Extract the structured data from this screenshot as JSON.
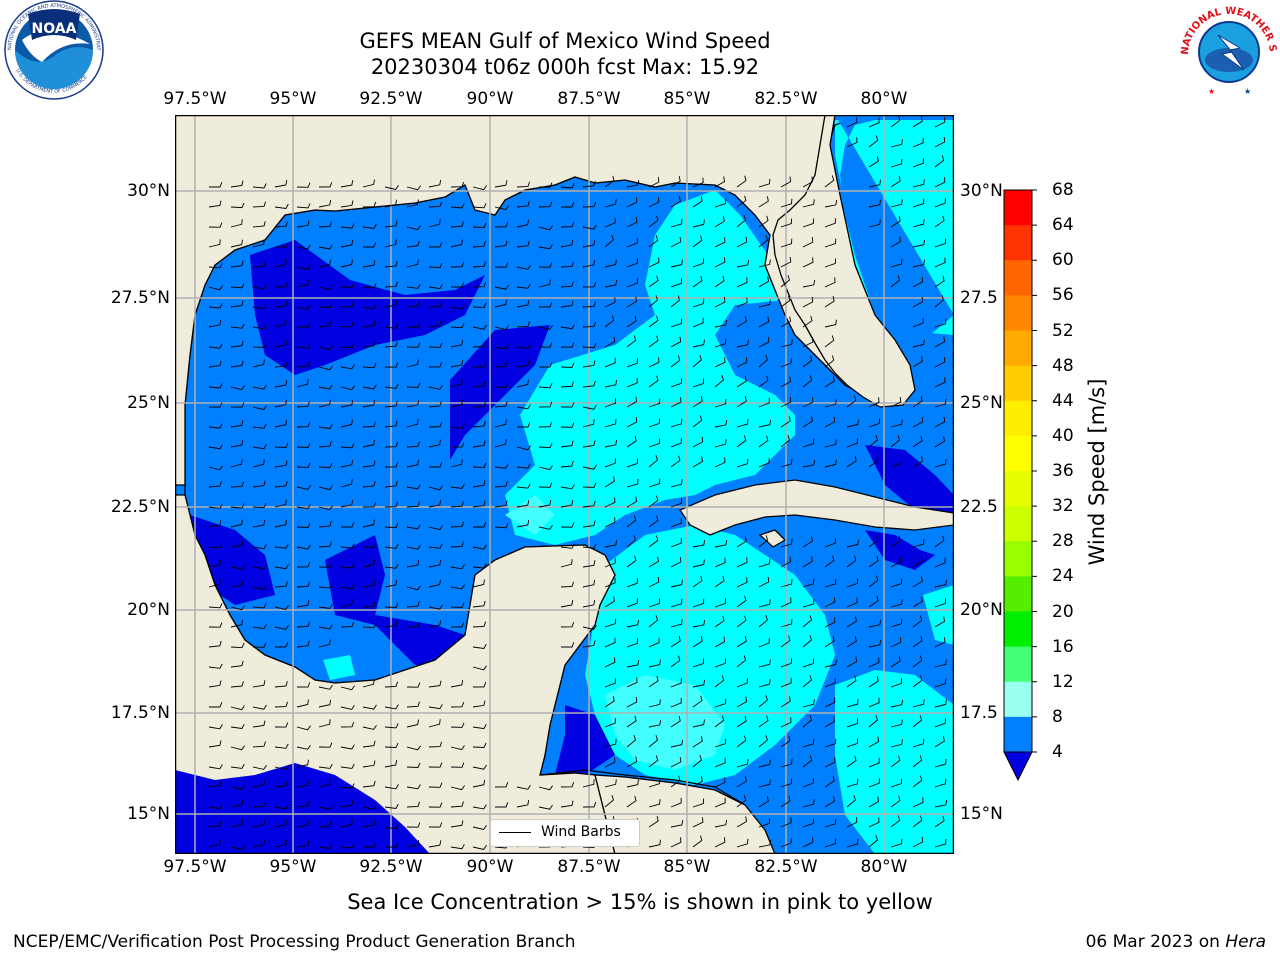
{
  "title": {
    "line1": "GEFS MEAN Gulf of Mexico Wind Speed",
    "line2": "20230304 t06z 000h fcst   Max: 15.92"
  },
  "longitude_labels": [
    "97.5°W",
    "95°W",
    "92.5°W",
    "90°W",
    "87.5°W",
    "85°W",
    "82.5°W",
    "80°W"
  ],
  "latitude_labels_left": [
    "30°N",
    "27.5°N",
    "25°N",
    "22.5°N",
    "20°N",
    "17.5°N",
    "15°N"
  ],
  "latitude_labels_right": [
    "30°N",
    "27.5",
    "25°N",
    "22.5",
    "20°N",
    "17.5",
    "15°N"
  ],
  "colorbar": {
    "title": "Wind Speed [m/s]",
    "ticks": [
      "68",
      "64",
      "60",
      "56",
      "52",
      "48",
      "44",
      "40",
      "36",
      "32",
      "28",
      "24",
      "20",
      "16",
      "12",
      "8",
      "4"
    ],
    "colors": [
      "#ff0000",
      "#ff3300",
      "#ff6600",
      "#ff8800",
      "#ffaa00",
      "#ffcc00",
      "#ffee00",
      "#ffff00",
      "#e6ff00",
      "#ccff00",
      "#99ff00",
      "#55ee00",
      "#00ee00",
      "#44ff77",
      "#99ffee",
      "#44ffff",
      "#00ffff",
      "#0080ff"
    ],
    "under_color": "#0000e0"
  },
  "legend": {
    "label": "Wind Barbs"
  },
  "footer_note": "Sea Ice Concentration > 15% is shown in pink to yellow",
  "credit_left": "NCEP/EMC/Verification Post Processing Product Generation Branch",
  "credit_right_prefix": "06 Mar 2023 on ",
  "credit_right_machine": "Hera",
  "logos": {
    "left": {
      "name": "NOAA",
      "ring_text": "NATIONAL OCEANIC AND ATMOSPHERIC ADMINISTRATION · U.S. DEPARTMENT OF COMMERCE"
    },
    "right": {
      "name": "NATIONAL WEATHER SERVICE"
    }
  },
  "map_colors": {
    "land": "#efecdc",
    "coast": "#000000",
    "grid": "#b0b0b0"
  }
}
